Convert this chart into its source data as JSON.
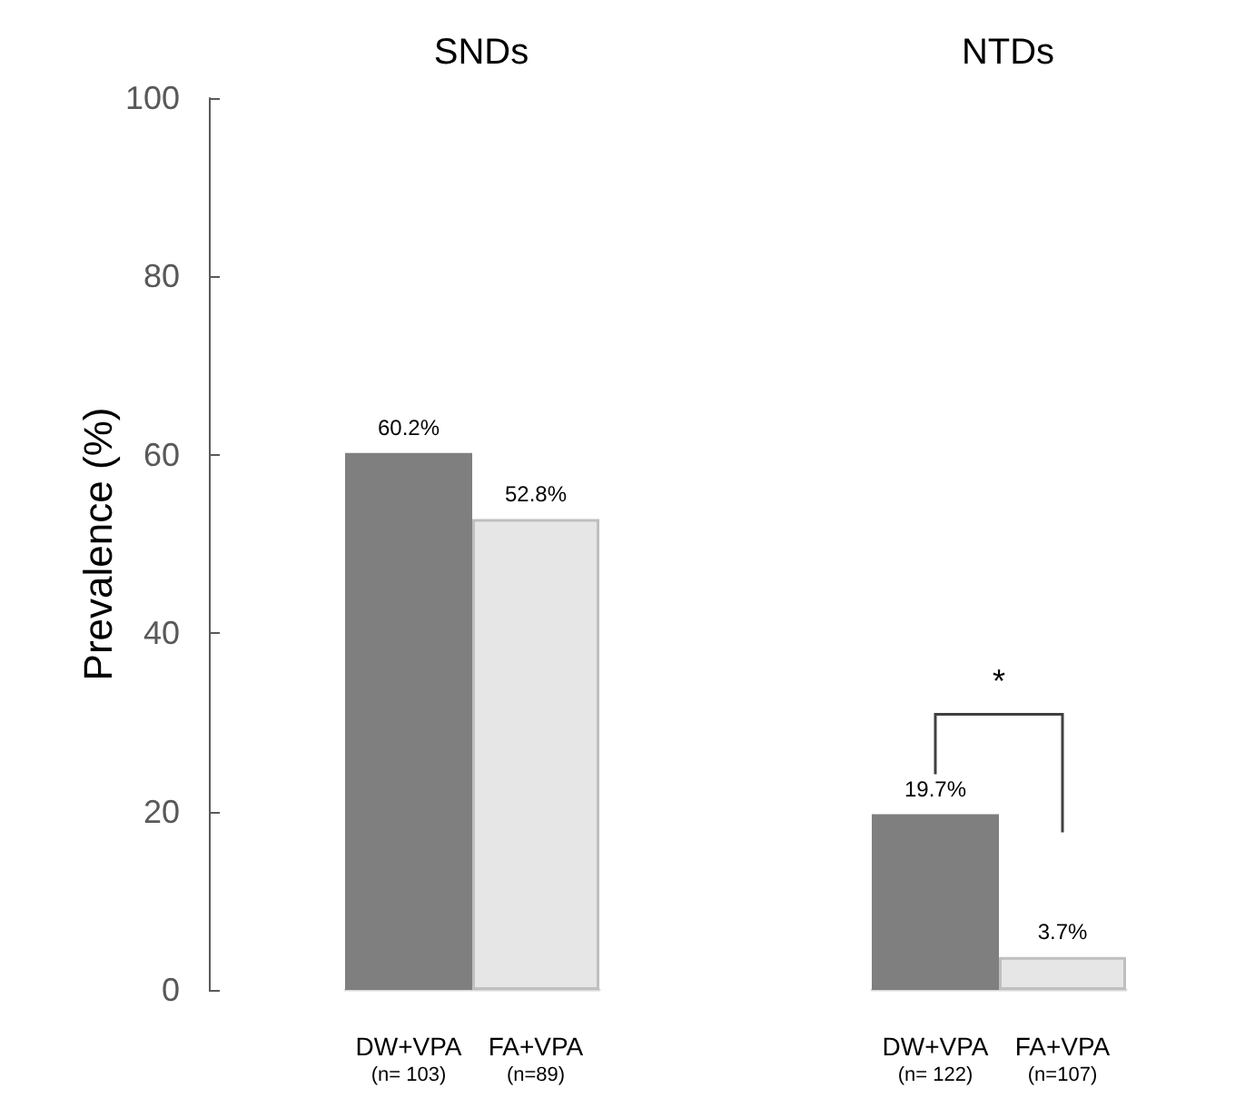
{
  "chart_data": [
    {
      "type": "bar",
      "title": "SNDs",
      "ylabel": "Prevalence (%)",
      "categories": [
        "DW+VPA\n(n= 103)",
        "FA+VPA\n(n=89)"
      ],
      "values": [
        60.2,
        52.8
      ],
      "colors": [
        "#7f7f7f",
        "#e6e6e6"
      ],
      "value_labels": [
        "60.2%",
        "52.8%"
      ],
      "ylim": [
        0,
        100
      ],
      "yticks": [
        0,
        20,
        40,
        60,
        80,
        100
      ],
      "grid": false
    },
    {
      "type": "bar",
      "title": "NTDs",
      "categories": [
        "DW+VPA\n(n= 122)",
        "FA+VPA\n(n=107)"
      ],
      "values": [
        19.7,
        3.7
      ],
      "colors": [
        "#7f7f7f",
        "#e6e6e6"
      ],
      "value_labels": [
        "19.7%",
        "3.7%"
      ],
      "ylim": [
        0,
        100
      ],
      "yticks": [
        0,
        20,
        40,
        60,
        80,
        100
      ],
      "tick_labels": "x",
      "grid": false,
      "annotations": [
        "*"
      ]
    }
  ]
}
